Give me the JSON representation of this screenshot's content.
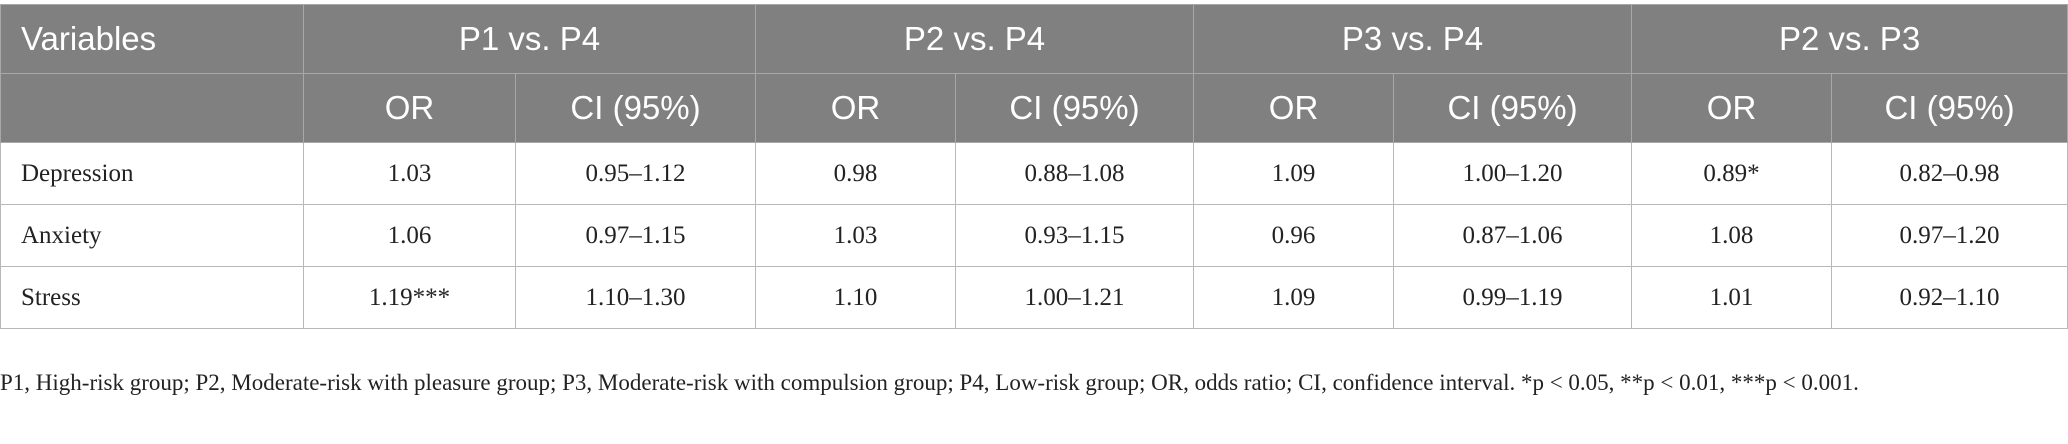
{
  "table": {
    "header_row1": [
      "Variables",
      "P1 vs. P4",
      "P2 vs. P4",
      "P3 vs. P4",
      "P2 vs. P3"
    ],
    "header_row2": [
      "OR",
      "CI (95%)",
      "OR",
      "CI (95%)",
      "OR",
      "CI (95%)",
      "OR",
      "CI (95%)"
    ],
    "rows": [
      [
        "Depression",
        "1.03",
        "0.95–1.12",
        "0.98",
        "0.88–1.08",
        "1.09",
        "1.00–1.20",
        "0.89*",
        "0.82–0.98"
      ],
      [
        "Anxiety",
        "1.06",
        "0.97–1.15",
        "1.03",
        "0.93–1.15",
        "0.96",
        "0.87–1.06",
        "1.08",
        "0.97–1.20"
      ],
      [
        "Stress",
        "1.19***",
        "1.10–1.30",
        "1.10",
        "1.00–1.21",
        "1.09",
        "0.99–1.19",
        "1.01",
        "0.92–1.10"
      ]
    ]
  },
  "footnote": {
    "text": "P1, High-risk group; P2, Moderate-risk with pleasure group; P3, Moderate-risk with compulsion group; P4, Low-risk group; OR, odds ratio; CI, confidence interval. *p < 0.05, **p < 0.01, ***p < 0.001."
  }
}
